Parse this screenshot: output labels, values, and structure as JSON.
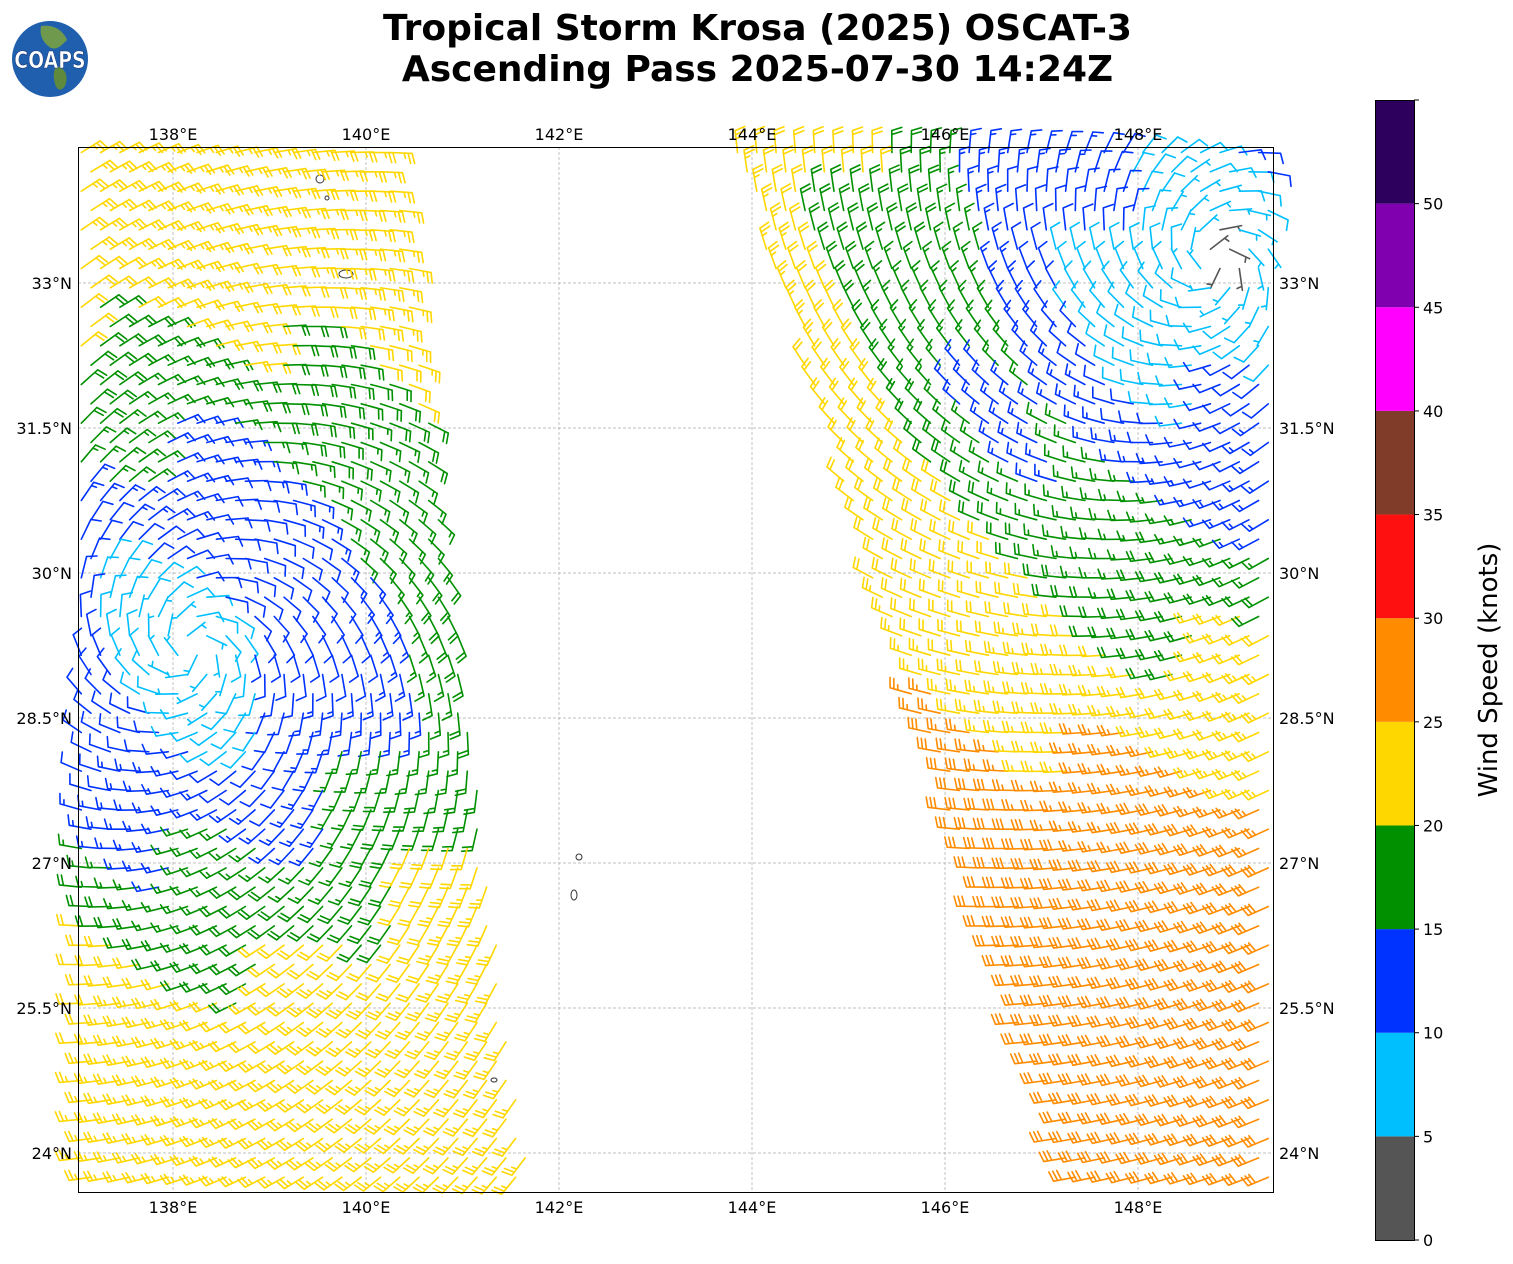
{
  "title": {
    "line1": "Tropical Storm Krosa (2025) OSCAT-3",
    "line2": "Ascending Pass 2025-07-30 14:24Z"
  },
  "logo": {
    "text": "COAPS"
  },
  "chart_data": {
    "type": "map-wind-barbs",
    "lon_ticks": [
      "138°E",
      "140°E",
      "142°E",
      "144°E",
      "146°E",
      "148°E"
    ],
    "lon_values": [
      138,
      140,
      142,
      144,
      146,
      148
    ],
    "lat_ticks": [
      "33°N",
      "31.5°N",
      "30°N",
      "28.5°N",
      "27°N",
      "25.5°N",
      "24°N"
    ],
    "lat_values": [
      33,
      31.5,
      30,
      28.5,
      27,
      25.5,
      24
    ],
    "lon_range": [
      137.02,
      149.38
    ],
    "lat_range": [
      23.6,
      34.41
    ],
    "grid": true,
    "colorbar": {
      "label": "Wind Speed (knots)",
      "bounds": [
        0,
        5,
        10,
        15,
        20,
        25,
        30,
        35,
        40,
        45,
        50,
        55
      ],
      "tick_labels": [
        "0",
        "5",
        "10",
        "15",
        "20",
        "25",
        "30",
        "35",
        "40",
        "45",
        "50"
      ],
      "colors": [
        "#555555",
        "#00bfff",
        "#0033ff",
        "#009000",
        "#ffd700",
        "#ff8c00",
        "#ff1010",
        "#803c28",
        "#ff00ff",
        "#8000b0",
        "#2e005e"
      ]
    }
  }
}
